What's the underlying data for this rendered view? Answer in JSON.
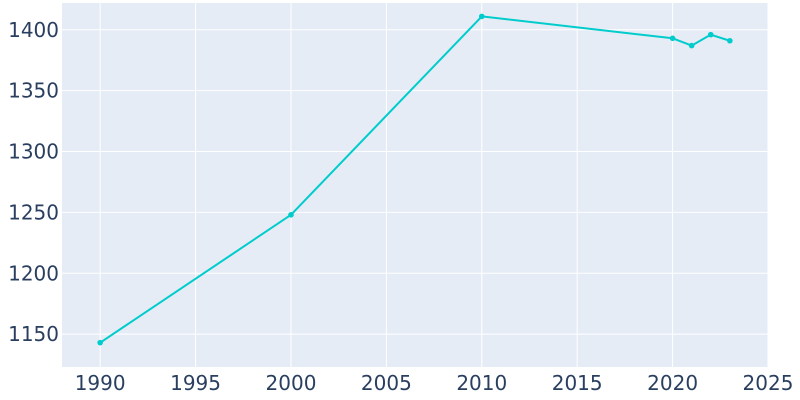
{
  "chart_data": {
    "type": "line",
    "title": "",
    "xlabel": "",
    "ylabel": "",
    "x": [
      1990,
      2000,
      2010,
      2020,
      2021,
      2022,
      2023
    ],
    "series": [
      {
        "values": [
          1143,
          1248,
          1411,
          1393,
          1387,
          1396,
          1391
        ]
      }
    ],
    "xlim": [
      1988,
      2025
    ],
    "ylim": [
      1123,
      1422
    ],
    "x_ticks": [
      1990,
      1995,
      2000,
      2005,
      2010,
      2015,
      2020,
      2025
    ],
    "y_ticks": [
      1150,
      1200,
      1250,
      1300,
      1350,
      1400
    ],
    "x_tick_labels": [
      "1990",
      "1995",
      "2000",
      "2005",
      "2010",
      "2015",
      "2020",
      "2025"
    ],
    "y_tick_labels": [
      "1150",
      "1200",
      "1250",
      "1300",
      "1350",
      "1400"
    ],
    "grid": true,
    "colors": {
      "line": "#00cccc",
      "background": "#e5ecf6",
      "grid": "#ffffff",
      "text": "#2a3f5f"
    }
  }
}
